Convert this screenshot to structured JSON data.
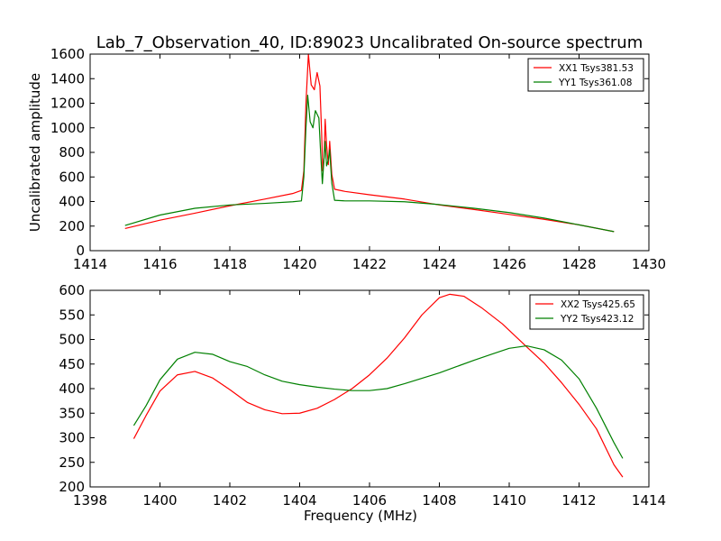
{
  "figure": {
    "title": "Lab_7_Observation_40, ID:89023 Uncalibrated On-source spectrum"
  },
  "chart_data": [
    {
      "type": "line",
      "title": "Lab_7_Observation_40, ID:89023 Uncalibrated On-source spectrum",
      "xlabel": "",
      "ylabel": "Uncalibrated amplitude",
      "xlim": [
        1414,
        1430
      ],
      "ylim": [
        0,
        1600
      ],
      "xticks": [
        1414,
        1416,
        1418,
        1420,
        1422,
        1424,
        1426,
        1428,
        1430
      ],
      "yticks": [
        0,
        200,
        400,
        600,
        800,
        1000,
        1200,
        1400,
        1600
      ],
      "legend_position": "top-right",
      "grid": false,
      "series": [
        {
          "name": "XX1 Tsys381.53",
          "color": "#ff0000",
          "points": [
            [
              1415,
              180
            ],
            [
              1416,
              248
            ],
            [
              1417,
              305
            ],
            [
              1418,
              365
            ],
            [
              1419,
              420
            ],
            [
              1419.8,
              465
            ],
            [
              1420.05,
              490
            ],
            [
              1420.12,
              650
            ],
            [
              1420.18,
              1200
            ],
            [
              1420.25,
              1600
            ],
            [
              1420.33,
              1350
            ],
            [
              1420.42,
              1310
            ],
            [
              1420.5,
              1450
            ],
            [
              1420.58,
              1340
            ],
            [
              1420.63,
              950
            ],
            [
              1420.66,
              650
            ],
            [
              1420.7,
              760
            ],
            [
              1420.73,
              1070
            ],
            [
              1420.77,
              860
            ],
            [
              1420.82,
              700
            ],
            [
              1420.86,
              890
            ],
            [
              1420.92,
              620
            ],
            [
              1421,
              500
            ],
            [
              1421.3,
              482
            ],
            [
              1422,
              455
            ],
            [
              1423,
              420
            ],
            [
              1424,
              372
            ],
            [
              1425,
              335
            ],
            [
              1426,
              295
            ],
            [
              1427,
              255
            ],
            [
              1428,
              210
            ],
            [
              1429,
              155
            ]
          ]
        },
        {
          "name": "YY1 Tsys361.08",
          "color": "#008000",
          "points": [
            [
              1415,
              205
            ],
            [
              1416,
              290
            ],
            [
              1417,
              345
            ],
            [
              1418,
              372
            ],
            [
              1419,
              385
            ],
            [
              1419.8,
              398
            ],
            [
              1420.05,
              405
            ],
            [
              1420.12,
              600
            ],
            [
              1420.18,
              1000
            ],
            [
              1420.23,
              1265
            ],
            [
              1420.3,
              1050
            ],
            [
              1420.38,
              1000
            ],
            [
              1420.45,
              1140
            ],
            [
              1420.55,
              1080
            ],
            [
              1420.6,
              800
            ],
            [
              1420.65,
              545
            ],
            [
              1420.7,
              760
            ],
            [
              1420.73,
              890
            ],
            [
              1420.77,
              690
            ],
            [
              1420.82,
              740
            ],
            [
              1420.86,
              820
            ],
            [
              1420.92,
              550
            ],
            [
              1421,
              410
            ],
            [
              1421.3,
              405
            ],
            [
              1422,
              405
            ],
            [
              1423,
              398
            ],
            [
              1424,
              375
            ],
            [
              1425,
              345
            ],
            [
              1426,
              310
            ],
            [
              1427,
              265
            ],
            [
              1428,
              210
            ],
            [
              1429,
              155
            ]
          ]
        }
      ]
    },
    {
      "type": "line",
      "title": "",
      "xlabel": "Frequency (MHz)",
      "ylabel": "",
      "xlim": [
        1398,
        1414
      ],
      "ylim": [
        200,
        600
      ],
      "xticks": [
        1398,
        1400,
        1402,
        1404,
        1406,
        1408,
        1410,
        1412,
        1414
      ],
      "yticks": [
        200,
        250,
        300,
        350,
        400,
        450,
        500,
        550,
        600
      ],
      "legend_position": "top-right",
      "grid": false,
      "series": [
        {
          "name": "XX2 Tsys425.65",
          "color": "#ff0000",
          "points": [
            [
              1399.25,
              298
            ],
            [
              1399.6,
              345
            ],
            [
              1400,
              395
            ],
            [
              1400.5,
              428
            ],
            [
              1401,
              435
            ],
            [
              1401.5,
              422
            ],
            [
              1402,
              398
            ],
            [
              1402.5,
              372
            ],
            [
              1403,
              357
            ],
            [
              1403.5,
              349
            ],
            [
              1404,
              350
            ],
            [
              1404.5,
              360
            ],
            [
              1405,
              378
            ],
            [
              1405.5,
              400
            ],
            [
              1406,
              428
            ],
            [
              1406.5,
              462
            ],
            [
              1407,
              503
            ],
            [
              1407.5,
              550
            ],
            [
              1408,
              585
            ],
            [
              1408.3,
              592
            ],
            [
              1408.7,
              588
            ],
            [
              1409.2,
              565
            ],
            [
              1409.8,
              532
            ],
            [
              1410.5,
              485
            ],
            [
              1411,
              452
            ],
            [
              1411.5,
              412
            ],
            [
              1412,
              368
            ],
            [
              1412.5,
              318
            ],
            [
              1413,
              245
            ],
            [
              1413.25,
              220
            ]
          ]
        },
        {
          "name": "YY2 Tsys423.12",
          "color": "#008000",
          "points": [
            [
              1399.25,
              325
            ],
            [
              1399.6,
              365
            ],
            [
              1400,
              418
            ],
            [
              1400.5,
              460
            ],
            [
              1401,
              474
            ],
            [
              1401.5,
              470
            ],
            [
              1402,
              455
            ],
            [
              1402.5,
              445
            ],
            [
              1403,
              428
            ],
            [
              1403.5,
              415
            ],
            [
              1404,
              408
            ],
            [
              1404.5,
              403
            ],
            [
              1405,
              399
            ],
            [
              1405.5,
              396
            ],
            [
              1406,
              396
            ],
            [
              1406.5,
              400
            ],
            [
              1407,
              410
            ],
            [
              1407.5,
              421
            ],
            [
              1408,
              432
            ],
            [
              1408.5,
              445
            ],
            [
              1409,
              458
            ],
            [
              1409.5,
              470
            ],
            [
              1410,
              482
            ],
            [
              1410.5,
              487
            ],
            [
              1411,
              479
            ],
            [
              1411.5,
              458
            ],
            [
              1412,
              420
            ],
            [
              1412.5,
              360
            ],
            [
              1413,
              290
            ],
            [
              1413.25,
              258
            ]
          ]
        }
      ]
    }
  ]
}
